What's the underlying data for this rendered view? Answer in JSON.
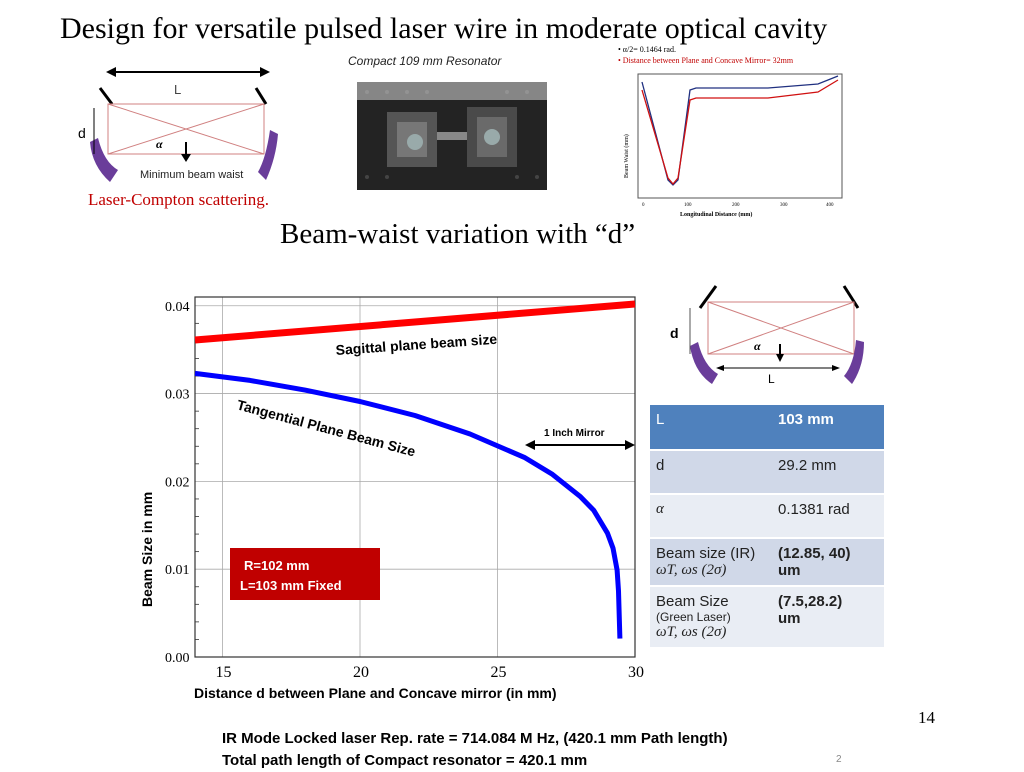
{
  "title": "Design for versatile pulsed laser wire in moderate optical cavity",
  "cavity_top": {
    "length_label": "L",
    "d_label": "d",
    "alpha_label": "α",
    "waist_label": "Minimum beam waist",
    "caption": "Laser-Compton scattering."
  },
  "resonator": {
    "caption": "Compact 109 mm Resonator"
  },
  "beam_waist_plot": {
    "note1": "• α/2= 0.1464 rad.",
    "note2": "• Distance between Plane and Concave Mirror= 32mm",
    "ylabel": "Beam Waist (mm)",
    "xlabel": "Longitudinal Distance (mm)",
    "xticks": [
      "0",
      "100",
      "200",
      "300",
      "400"
    ]
  },
  "subtitle": "Beam-waist variation with “d”",
  "chart_data": {
    "type": "line",
    "xlabel": "Distance d between Plane and Concave mirror (in mm)",
    "ylabel": "Beam Size in mm",
    "xlim": [
      14,
      30
    ],
    "ylim": [
      0,
      0.041
    ],
    "xticks": [
      "15",
      "20",
      "25",
      "30"
    ],
    "yticks": [
      "0.00",
      "0.01",
      "0.02",
      "0.03",
      "0.04"
    ],
    "series": [
      {
        "name": "Sagittal plane beam size",
        "color": "#ff0000",
        "x": [
          14,
          30
        ],
        "y": [
          0.0361,
          0.0402
        ]
      },
      {
        "name": "Tangential Plane Beam Size",
        "color": "#0000ff",
        "x": [
          14,
          16,
          18,
          20,
          22,
          24,
          26,
          27,
          28,
          28.5,
          29,
          29.2,
          29.35,
          29.4,
          29.45
        ],
        "y": [
          0.0323,
          0.0315,
          0.0304,
          0.0291,
          0.0275,
          0.0254,
          0.0227,
          0.0208,
          0.0183,
          0.0167,
          0.0141,
          0.0124,
          0.0099,
          0.0075,
          0.0021
        ]
      }
    ],
    "annotations": {
      "mirror_label": "1 Inch Mirror",
      "mirror_range": [
        26,
        30
      ],
      "box_line1": "R=102 mm",
      "box_line2": "L=103 mm Fixed"
    }
  },
  "cavity_small": {
    "d_label": "d",
    "alpha_label": "α",
    "length_label": "L"
  },
  "params_table": {
    "rows": [
      {
        "label": "L",
        "value": "103 mm"
      },
      {
        "label": "d",
        "value": "29.2 mm"
      },
      {
        "label": "α",
        "value": "0.1381 rad"
      }
    ],
    "beam_ir": {
      "label": "Beam size  (IR)",
      "sub": "ωT, ωs  (2σ)",
      "value1": "(12.85, 40)",
      "value2": "um"
    },
    "beam_green": {
      "label": "Beam Size",
      "label_small": "(Green Laser)",
      "sub": "ωT, ωs  (2σ)",
      "value1": "(7.5,28.2)",
      "value2": "um"
    }
  },
  "slide_number": "14",
  "footer": {
    "line1": "IR Mode Locked laser Rep. rate = 714.084 M Hz, (420.1 mm Path length)",
    "line2": "Total path length of Compact resonator = 420.1 mm",
    "small_number": "2"
  }
}
